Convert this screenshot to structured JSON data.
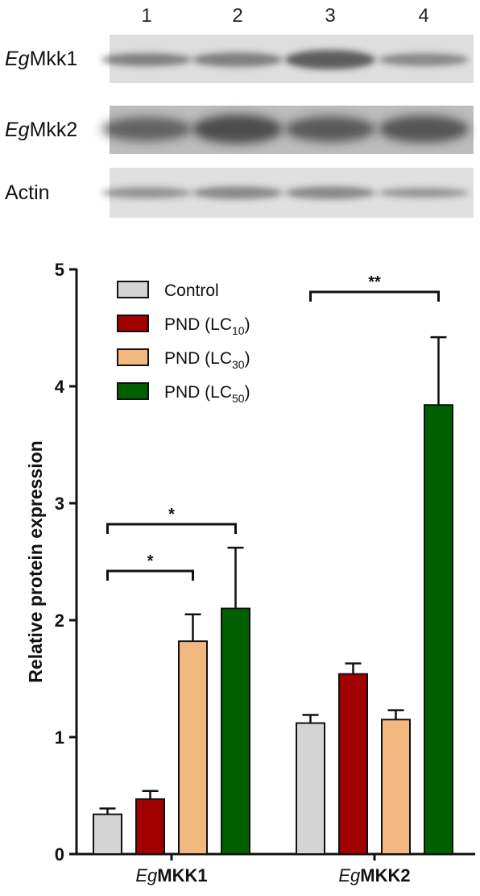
{
  "blot": {
    "lane_labels": [
      "1",
      "2",
      "3",
      "4"
    ],
    "rows": [
      {
        "prefix": "Eg",
        "name": "Mkk1"
      },
      {
        "prefix": "Eg",
        "name": "Mkk2"
      },
      {
        "prefix": "",
        "name": "Actin"
      }
    ]
  },
  "chart_data": {
    "type": "bar",
    "categories": [
      {
        "prefix": "Eg",
        "name": "MKK1"
      },
      {
        "prefix": "Eg",
        "name": "MKK2"
      }
    ],
    "series": [
      {
        "name": "Control",
        "sub": "",
        "color": "#d4d4d4",
        "values": [
          0.34,
          1.12
        ],
        "errors": [
          0.05,
          0.07
        ]
      },
      {
        "name": "PND (LC",
        "sub": "10",
        "color": "#a00000",
        "values": [
          0.47,
          1.54
        ],
        "errors": [
          0.07,
          0.09
        ]
      },
      {
        "name": "PND (LC",
        "sub": "30",
        "color": "#f2b880",
        "values": [
          1.82,
          1.15
        ],
        "errors": [
          0.23,
          0.08
        ]
      },
      {
        "name": "PND (LC",
        "sub": "50",
        "color": "#006000",
        "values": [
          2.1,
          3.84
        ],
        "errors": [
          0.52,
          0.58
        ]
      }
    ],
    "ylabel": "Relative protein expression",
    "ylim": [
      0,
      5
    ],
    "yticks": [
      "0",
      "1",
      "2",
      "3",
      "4",
      "5"
    ],
    "significance": [
      {
        "group": 0,
        "from": 0,
        "to": 2,
        "label": "*"
      },
      {
        "group": 0,
        "from": 0,
        "to": 3,
        "label": "*"
      },
      {
        "group": 1,
        "from": 0,
        "to": 3,
        "label": "**"
      }
    ],
    "legend_position": "top-left"
  }
}
